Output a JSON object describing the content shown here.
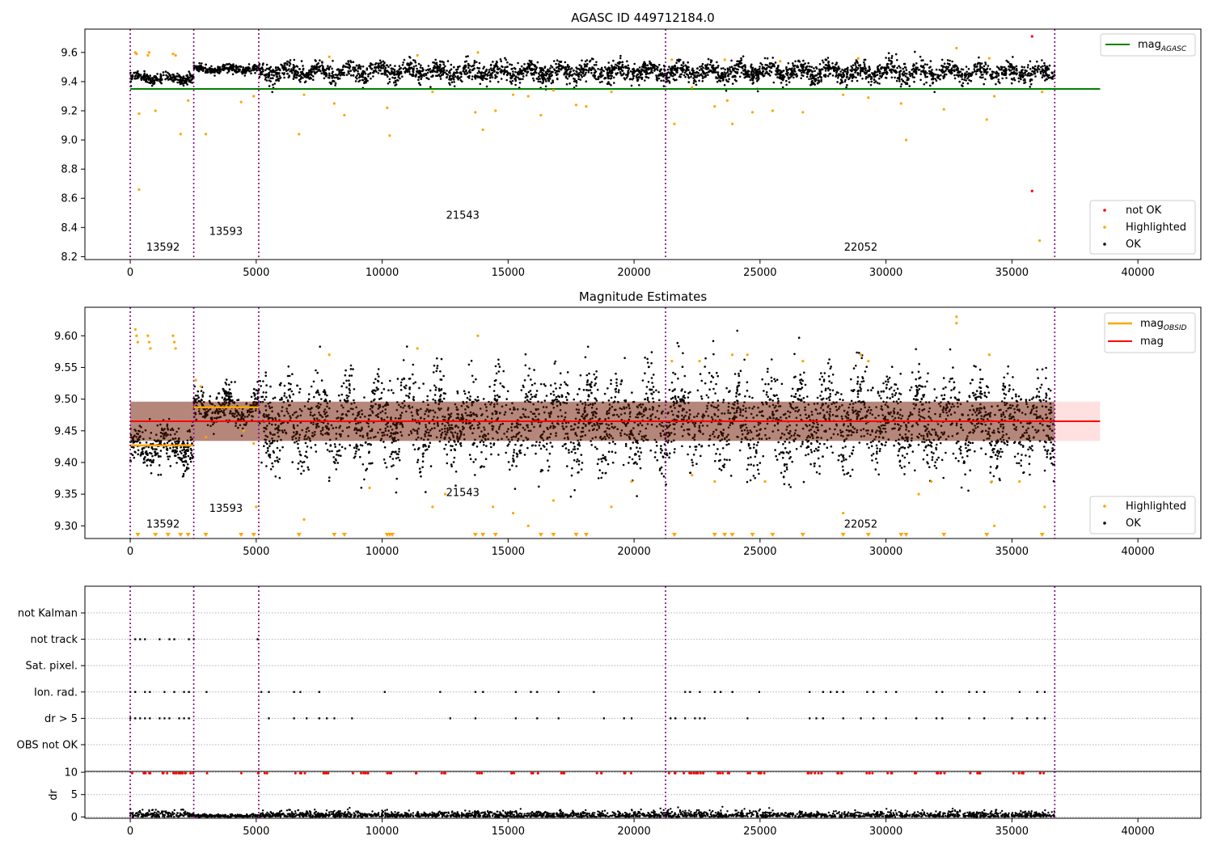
{
  "chart_data": [
    {
      "type": "scatter",
      "title": "AGASC ID 449712184.0",
      "xlim": [
        -1800,
        42500
      ],
      "ylim": [
        8.18,
        9.76
      ],
      "xticks": [
        0,
        5000,
        10000,
        15000,
        20000,
        25000,
        30000,
        35000,
        40000
      ],
      "yticks": [
        8.2,
        8.4,
        8.6,
        8.8,
        9.0,
        9.2,
        9.4,
        9.6
      ],
      "grid": false,
      "obsid_boundaries": [
        0,
        2520,
        5100,
        21250,
        36700
      ],
      "obsid_labels": [
        {
          "text": "13592",
          "x": 1300,
          "y": 8.24
        },
        {
          "text": "13593",
          "x": 3800,
          "y": 8.35
        },
        {
          "text": "21543",
          "x": 13200,
          "y": 8.46
        },
        {
          "text": "22052",
          "x": 29000,
          "y": 8.24
        }
      ],
      "reference_lines": [
        {
          "name": "mag_AGASC",
          "color": "#008000",
          "y": 9.35,
          "x": [
            0,
            38500
          ]
        }
      ],
      "ok_segments": [
        {
          "x": [
            0,
            2520
          ],
          "center": 9.425,
          "spread": 0.03
        },
        {
          "x": [
            2520,
            5100
          ],
          "center": 9.485,
          "spread": 0.025
        },
        {
          "x": [
            5100,
            21250
          ],
          "center": 9.465,
          "spread": 0.06
        },
        {
          "x": [
            21250,
            36700
          ],
          "center": 9.465,
          "spread": 0.06
        }
      ],
      "series": [
        {
          "name": "not OK",
          "color": "#ff0000",
          "points": [
            [
              35800,
              9.71
            ],
            [
              35800,
              8.65
            ]
          ]
        },
        {
          "name": "Highlighted",
          "color": "#ffa500",
          "points": [
            [
              200,
              9.6
            ],
            [
              250,
              9.59
            ],
            [
              700,
              9.58
            ],
            [
              750,
              9.6
            ],
            [
              1700,
              9.59
            ],
            [
              1800,
              9.58
            ],
            [
              350,
              9.18
            ],
            [
              350,
              8.66
            ],
            [
              1000,
              9.2
            ],
            [
              2000,
              9.04
            ],
            [
              2300,
              9.27
            ],
            [
              3000,
              9.04
            ],
            [
              4400,
              9.26
            ],
            [
              4900,
              9.3
            ],
            [
              6700,
              9.04
            ],
            [
              6900,
              9.31
            ],
            [
              8100,
              9.25
            ],
            [
              8500,
              9.17
            ],
            [
              10200,
              9.22
            ],
            [
              10300,
              9.03
            ],
            [
              12000,
              9.33
            ],
            [
              13700,
              9.19
            ],
            [
              14000,
              9.07
            ],
            [
              14500,
              9.2
            ],
            [
              15200,
              9.31
            ],
            [
              15800,
              9.3
            ],
            [
              16300,
              9.17
            ],
            [
              16800,
              9.34
            ],
            [
              17700,
              9.24
            ],
            [
              18100,
              9.23
            ],
            [
              19100,
              9.33
            ],
            [
              21600,
              9.11
            ],
            [
              22300,
              9.36
            ],
            [
              23200,
              9.23
            ],
            [
              23700,
              9.27
            ],
            [
              23900,
              9.11
            ],
            [
              24700,
              9.19
            ],
            [
              25500,
              9.2
            ],
            [
              26700,
              9.19
            ],
            [
              28300,
              9.31
            ],
            [
              29300,
              9.29
            ],
            [
              30600,
              9.25
            ],
            [
              30800,
              9.0
            ],
            [
              32300,
              9.21
            ],
            [
              32800,
              9.63
            ],
            [
              34000,
              9.14
            ],
            [
              34300,
              9.3
            ],
            [
              36200,
              9.33
            ],
            [
              36100,
              8.31
            ],
            [
              11400,
              9.58
            ],
            [
              13800,
              9.6
            ],
            [
              7900,
              9.57
            ],
            [
              25800,
              9.54
            ],
            [
              28900,
              9.56
            ],
            [
              34100,
              9.56
            ],
            [
              21500,
              9.55
            ],
            [
              23600,
              9.55
            ]
          ]
        },
        {
          "name": "OK",
          "color": "#000000",
          "points": []
        }
      ]
    },
    {
      "type": "scatter",
      "title": "Magnitude Estimates",
      "xlim": [
        -1800,
        42500
      ],
      "ylim": [
        9.28,
        9.645
      ],
      "xticks": [
        0,
        5000,
        10000,
        15000,
        20000,
        25000,
        30000,
        35000,
        40000
      ],
      "yticks": [
        9.3,
        9.35,
        9.4,
        9.45,
        9.5,
        9.55,
        9.6
      ],
      "grid": false,
      "obsid_boundaries": [
        0,
        2520,
        5100,
        21250,
        36700
      ],
      "obsid_labels": [
        {
          "text": "13592",
          "x": 1300,
          "y": 9.297
        },
        {
          "text": "13593",
          "x": 3800,
          "y": 9.322
        },
        {
          "text": "21543",
          "x": 13200,
          "y": 9.347
        },
        {
          "text": "22052",
          "x": 29000,
          "y": 9.297
        }
      ],
      "mean_line": {
        "name": "mag",
        "color": "#ff0000",
        "y": 9.465,
        "band": [
          9.434,
          9.496
        ],
        "x": [
          0,
          38500
        ]
      },
      "obsid_means": [
        {
          "x": [
            0,
            2520
          ],
          "y": 9.427
        },
        {
          "x": [
            2520,
            5100
          ],
          "y": 9.487
        }
      ],
      "obsid_mean_label": "mag_OBSID",
      "ok_segments": [
        {
          "x": [
            0,
            2520
          ],
          "center": 9.425,
          "spread": 0.03
        },
        {
          "x": [
            2520,
            5100
          ],
          "center": 9.485,
          "spread": 0.025
        },
        {
          "x": [
            5100,
            21250
          ],
          "center": 9.465,
          "spread": 0.06
        },
        {
          "x": [
            21250,
            36700
          ],
          "center": 9.465,
          "spread": 0.06
        }
      ],
      "series": [
        {
          "name": "Highlighted",
          "color": "#ffa500",
          "points": [
            [
              200,
              9.61
            ],
            [
              250,
              9.6
            ],
            [
              300,
              9.59
            ],
            [
              700,
              9.6
            ],
            [
              750,
              9.59
            ],
            [
              800,
              9.58
            ],
            [
              1700,
              9.6
            ],
            [
              1750,
              9.59
            ],
            [
              1800,
              9.58
            ],
            [
              2600,
              9.53
            ],
            [
              2800,
              9.52
            ],
            [
              3000,
              9.44
            ],
            [
              4500,
              9.45
            ],
            [
              4900,
              9.43
            ],
            [
              5000,
              9.33
            ],
            [
              6900,
              9.31
            ],
            [
              7900,
              9.57
            ],
            [
              9500,
              9.36
            ],
            [
              11400,
              9.58
            ],
            [
              12000,
              9.33
            ],
            [
              12500,
              9.35
            ],
            [
              13800,
              9.6
            ],
            [
              14400,
              9.33
            ],
            [
              15200,
              9.32
            ],
            [
              15800,
              9.3
            ],
            [
              16800,
              9.34
            ],
            [
              19100,
              9.33
            ],
            [
              19900,
              9.37
            ],
            [
              21500,
              9.56
            ],
            [
              22300,
              9.38
            ],
            [
              22600,
              9.56
            ],
            [
              23200,
              9.37
            ],
            [
              23900,
              9.57
            ],
            [
              24500,
              9.57
            ],
            [
              25200,
              9.37
            ],
            [
              26700,
              9.56
            ],
            [
              28300,
              9.32
            ],
            [
              29000,
              9.57
            ],
            [
              29300,
              9.56
            ],
            [
              31300,
              9.35
            ],
            [
              31800,
              9.37
            ],
            [
              32800,
              9.63
            ],
            [
              32800,
              9.62
            ],
            [
              34100,
              9.57
            ],
            [
              34200,
              9.37
            ],
            [
              34300,
              9.3
            ],
            [
              35300,
              9.37
            ],
            [
              36300,
              9.33
            ]
          ]
        },
        {
          "name": "OK",
          "color": "#000000",
          "points": []
        }
      ],
      "below_range_markers": [
        300,
        1000,
        1500,
        2000,
        2300,
        3000,
        4400,
        4900,
        6700,
        8100,
        8500,
        10200,
        10300,
        10400,
        13700,
        14000,
        14500,
        16300,
        16800,
        17700,
        18100,
        21600,
        23200,
        23600,
        23900,
        24700,
        25500,
        26700,
        28300,
        29300,
        30600,
        30800,
        32300,
        34000,
        36200
      ]
    },
    {
      "type": "scatter",
      "title": "",
      "xlim": [
        -1800,
        42500
      ],
      "xticks": [
        0,
        5000,
        10000,
        15000,
        20000,
        25000,
        30000,
        35000,
        40000
      ],
      "obsid_boundaries": [
        0,
        2520,
        5100,
        21250,
        36700
      ],
      "flag_rows": [
        "not Kalman",
        "not track",
        "Sat. pixel.",
        "Ion. rad.",
        "dr > 5",
        "OBS not OK"
      ],
      "flag_events": {
        "not track": [
          [
            0,
            2520
          ],
          [
            5000,
            5100
          ]
        ],
        "Ion. rad.": [
          [
            0,
            2520
          ],
          [
            3000,
            3050
          ],
          [
            4400,
            4450
          ],
          [
            4900,
            5500
          ],
          [
            6500,
            7000
          ],
          [
            7500,
            8100
          ],
          [
            8800,
            9500
          ],
          [
            10100,
            10400
          ],
          [
            11300,
            11500
          ],
          [
            12300,
            12700
          ],
          [
            13700,
            14000
          ],
          [
            14900,
            15300
          ],
          [
            15900,
            16400
          ],
          [
            17000,
            17300
          ],
          [
            18400,
            18800
          ],
          [
            19600,
            19900
          ],
          [
            21250,
            22800
          ],
          [
            23200,
            23900
          ],
          [
            24500,
            25200
          ],
          [
            26700,
            27500
          ],
          [
            27800,
            28300
          ],
          [
            29000,
            29500
          ],
          [
            30000,
            30400
          ],
          [
            31100,
            31300
          ],
          [
            32000,
            32700
          ],
          [
            33300,
            33900
          ],
          [
            35000,
            35600
          ],
          [
            36000,
            36300
          ]
        ],
        "dr > 5": [
          [
            0,
            2520
          ],
          [
            3000,
            3050
          ],
          [
            4400,
            4450
          ],
          [
            4900,
            5500
          ],
          [
            6500,
            7000
          ],
          [
            7500,
            8100
          ],
          [
            8800,
            9500
          ],
          [
            10100,
            10400
          ],
          [
            11300,
            11500
          ],
          [
            12300,
            12700
          ],
          [
            13700,
            14000
          ],
          [
            14900,
            15300
          ],
          [
            15900,
            16400
          ],
          [
            17000,
            17300
          ],
          [
            18400,
            18800
          ],
          [
            19600,
            19900
          ],
          [
            21250,
            22800
          ],
          [
            23200,
            23900
          ],
          [
            24500,
            25200
          ],
          [
            26700,
            27500
          ],
          [
            27800,
            28300
          ],
          [
            29000,
            29500
          ],
          [
            30000,
            30400
          ],
          [
            31100,
            31300
          ],
          [
            32000,
            32700
          ],
          [
            33300,
            33900
          ],
          [
            35000,
            35600
          ],
          [
            36000,
            36300
          ]
        ]
      },
      "ylabel": "dr",
      "dr_ylim": [
        -0.3,
        10.2
      ],
      "dr_yticks": [
        0,
        5,
        10
      ],
      "dr_red_y": 9.8
    }
  ],
  "legends": {
    "top": {
      "ref_line_base": "mag",
      "ref_line_sub": "AGASC",
      "not_ok": "not OK",
      "highlighted": "Highlighted",
      "ok": "OK"
    },
    "middle": {
      "mean_base": "mag",
      "mean_sub": "OBSID",
      "mag": "mag",
      "highlighted": "Highlighted",
      "ok": "OK"
    }
  }
}
